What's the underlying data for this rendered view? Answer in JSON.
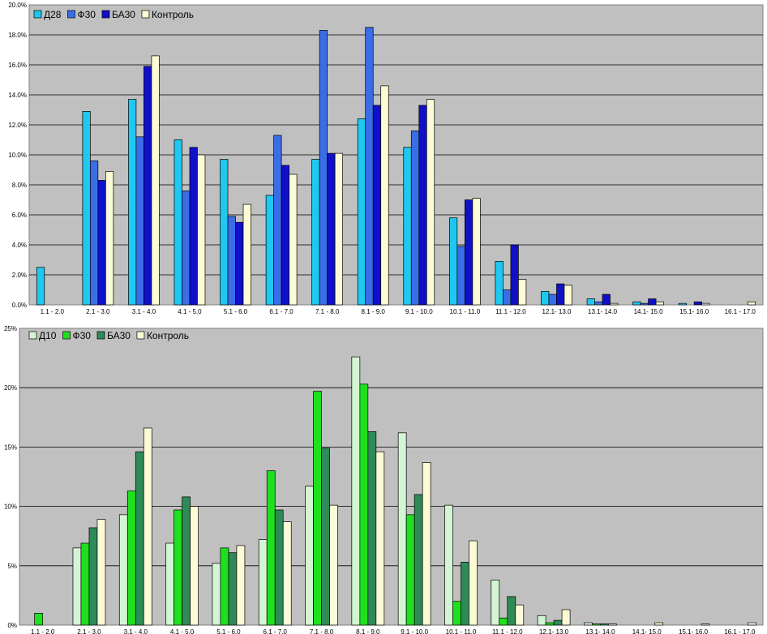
{
  "chart_data": [
    {
      "type": "bar",
      "categories": [
        "1.1 - 2.0",
        "2.1 - 3.0",
        "3.1 - 4.0",
        "4.1 - 5.0",
        "5.1 - 6.0",
        "6.1 - 7.0",
        "7.1 - 8.0",
        "8.1 - 9.0",
        "9.1 - 10.0",
        "10.1 - 11.0",
        "11.1 - 12.0",
        "12.1- 13.0",
        "13.1- 14.0",
        "14.1- 15.0",
        "15.1- 16.0",
        "16.1 - 17.0"
      ],
      "series": [
        {
          "name": "Д28",
          "color": "#1ec8f0",
          "values": [
            2.5,
            12.9,
            13.7,
            11.0,
            9.7,
            7.3,
            9.7,
            12.4,
            10.5,
            5.8,
            2.9,
            0.9,
            0.4,
            0.2,
            0.1,
            0.0
          ]
        },
        {
          "name": "Ф30",
          "color": "#3a6ee8",
          "values": [
            0.0,
            9.6,
            11.2,
            7.6,
            5.9,
            11.3,
            18.3,
            18.5,
            11.6,
            3.9,
            1.0,
            0.7,
            0.2,
            0.1,
            0.0,
            0.0
          ]
        },
        {
          "name": "БА30",
          "color": "#1010c8",
          "values": [
            0.0,
            8.3,
            15.9,
            10.5,
            5.5,
            9.3,
            10.1,
            13.3,
            13.3,
            7.0,
            4.0,
            1.4,
            0.7,
            0.4,
            0.2,
            0.0
          ]
        },
        {
          "name": "Контроль",
          "color": "#fdfbd6",
          "values": [
            0.0,
            8.9,
            16.6,
            10.0,
            6.7,
            8.7,
            10.1,
            14.6,
            13.7,
            7.1,
            1.7,
            1.3,
            0.1,
            0.2,
            0.1,
            0.2
          ]
        }
      ],
      "yticks": [
        "0.0%",
        "2.0%",
        "4.0%",
        "6.0%",
        "8.0%",
        "10.0%",
        "12.0%",
        "14.0%",
        "16.0%",
        "18.0%",
        "20.0%"
      ],
      "ylim": [
        0,
        20
      ],
      "grid": true,
      "legend_position": "top-left"
    },
    {
      "type": "bar",
      "categories": [
        "1.1 - 2.0",
        "2.1 - 3.0",
        "3.1 - 4.0",
        "4.1 - 5.0",
        "5.1 - 6.0",
        "6.1 - 7.0",
        "7.1 - 8.0",
        "8.1 - 9.0",
        "9.1 - 10.0",
        "10.1 - 11.0",
        "11.1 - 12.0",
        "12.1- 13.0",
        "13.1- 14.0",
        "14.1- 15.0",
        "15.1- 16.0",
        "16.1 - 17.0"
      ],
      "series": [
        {
          "name": "Д10",
          "color": "#d4f5d4",
          "values": [
            0.0,
            6.5,
            9.3,
            6.9,
            5.2,
            7.2,
            11.7,
            22.6,
            16.2,
            10.1,
            3.8,
            0.8,
            0.2,
            0.0,
            0.0,
            0.0
          ]
        },
        {
          "name": "Ф30",
          "color": "#1ee01e",
          "values": [
            1.0,
            6.9,
            11.3,
            9.7,
            6.5,
            13.0,
            19.7,
            20.3,
            9.3,
            2.0,
            0.6,
            0.2,
            0.1,
            0.0,
            0.0,
            0.0
          ]
        },
        {
          "name": "БА30",
          "color": "#2e8b57",
          "values": [
            0.0,
            8.2,
            14.6,
            10.8,
            6.1,
            9.7,
            14.9,
            16.3,
            11.0,
            5.3,
            2.4,
            0.4,
            0.1,
            0.0,
            0.0,
            0.0
          ]
        },
        {
          "name": "Контроль",
          "color": "#fdfbd6",
          "values": [
            0.0,
            8.9,
            16.6,
            10.0,
            6.7,
            8.7,
            10.1,
            14.6,
            13.7,
            7.1,
            1.7,
            1.3,
            0.1,
            0.2,
            0.1,
            0.2
          ]
        }
      ],
      "yticks": [
        "0%",
        "5%",
        "10%",
        "15%",
        "20%",
        "25%"
      ],
      "ylim": [
        0,
        25
      ],
      "grid": true,
      "legend_position": "top-left"
    }
  ]
}
